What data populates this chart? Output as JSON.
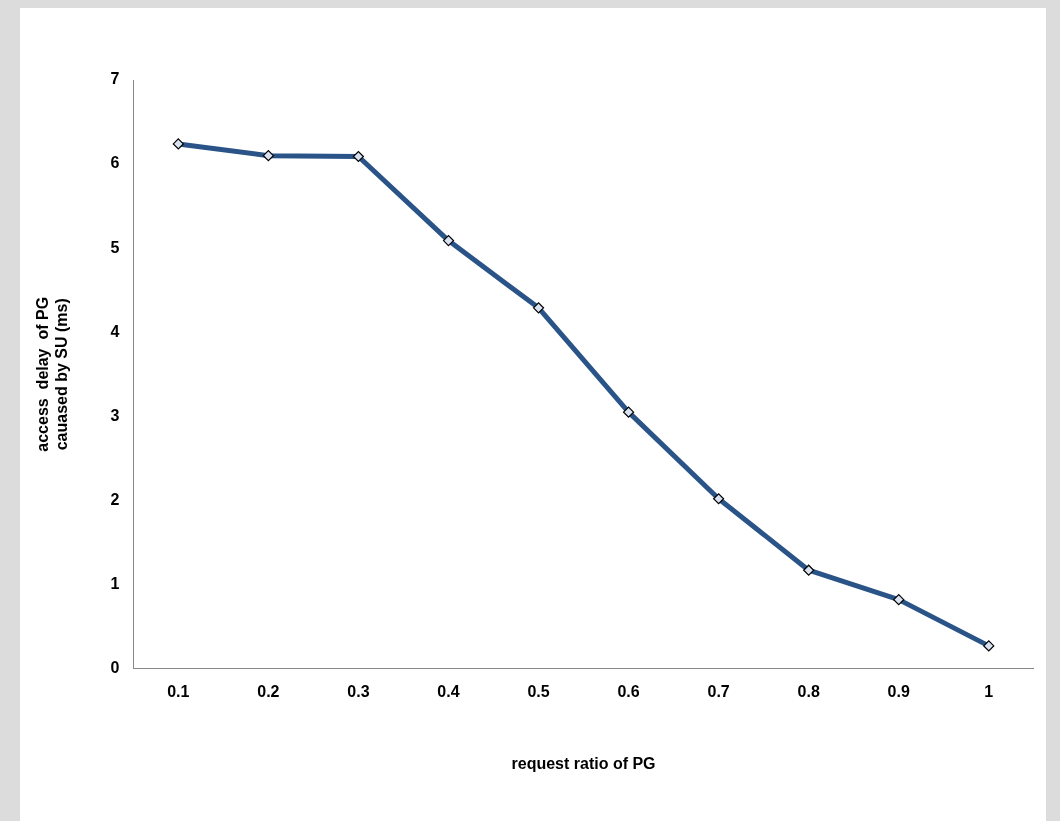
{
  "chart_data": {
    "type": "line",
    "xlabel": "request ratio of PG",
    "ylabel": "access  delay  of PG\ncauased by SU (ms)",
    "categories": [
      "0.1",
      "0.2",
      "0.3",
      "0.4",
      "0.5",
      "0.6",
      "0.7",
      "0.8",
      "0.9",
      "1"
    ],
    "series": [
      {
        "color": "#2a5488",
        "values": [
          6.24,
          6.1,
          6.09,
          5.09,
          4.29,
          3.05,
          2.02,
          1.17,
          0.82,
          0.27
        ]
      }
    ],
    "ylim": [
      0,
      7
    ],
    "yticks": [
      0,
      1,
      2,
      3,
      4,
      5,
      6,
      7
    ],
    "grid": false,
    "legend": false,
    "marker": "diamond",
    "line_style": "solid"
  }
}
